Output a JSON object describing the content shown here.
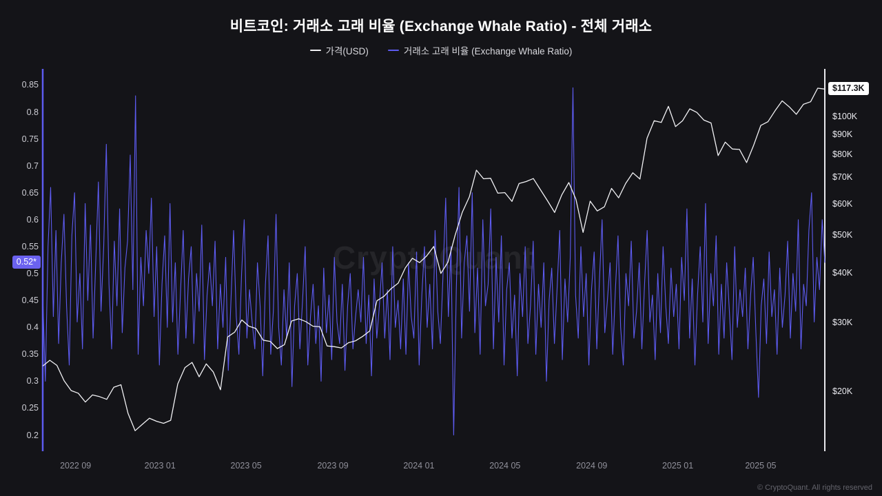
{
  "header": {
    "title": "비트코인: 거래소 고래 비율 (Exchange Whale Ratio) - 전체 거래소",
    "legend": [
      {
        "label": "가격(USD)",
        "color": "#f2f2f5"
      },
      {
        "label": "거래소 고래 비율 (Exchange Whale Ratio)",
        "color": "#5d5bf0"
      }
    ]
  },
  "watermark": "CryptoQuant",
  "footer": {
    "copyright": "© CryptoQuant. All rights reserved"
  },
  "badges": {
    "ratio_current": "0.52*",
    "ratio_value": 0.52,
    "price_current": "$117.3K",
    "price_value": 117.3
  },
  "chart_data": {
    "type": "line",
    "title": "비트코인: 거래소 고래 비율 (Exchange Whale Ratio) - 전체 거래소",
    "x_range": [
      "2022-07",
      "2025-07"
    ],
    "x_ticks": [
      {
        "label": "2022 09",
        "pos": 0.042
      },
      {
        "label": "2023 01",
        "pos": 0.15
      },
      {
        "label": "2023 05",
        "pos": 0.26
      },
      {
        "label": "2023 09",
        "pos": 0.371
      },
      {
        "label": "2024 01",
        "pos": 0.481
      },
      {
        "label": "2024 05",
        "pos": 0.591
      },
      {
        "label": "2024 09",
        "pos": 0.702
      },
      {
        "label": "2025 01",
        "pos": 0.812
      },
      {
        "label": "2025 05",
        "pos": 0.918
      }
    ],
    "left_axis": {
      "name": "Exchange Whale Ratio",
      "scale": "linear",
      "min": 0.17,
      "max": 0.88,
      "ticks": [
        {
          "label": "0.85",
          "value": 0.85
        },
        {
          "label": "0.8",
          "value": 0.8
        },
        {
          "label": "0.75",
          "value": 0.75
        },
        {
          "label": "0.7",
          "value": 0.7
        },
        {
          "label": "0.65",
          "value": 0.65
        },
        {
          "label": "0.6",
          "value": 0.6
        },
        {
          "label": "0.55",
          "value": 0.55
        },
        {
          "label": "0.5",
          "value": 0.5
        },
        {
          "label": "0.45",
          "value": 0.45
        },
        {
          "label": "0.4",
          "value": 0.4
        },
        {
          "label": "0.35",
          "value": 0.35
        },
        {
          "label": "0.3",
          "value": 0.3
        },
        {
          "label": "0.25",
          "value": 0.25
        },
        {
          "label": "0.2",
          "value": 0.2
        }
      ]
    },
    "right_axis": {
      "name": "가격(USD, 천 달러)",
      "scale": "log",
      "min": 14.1,
      "max": 132,
      "ticks": [
        {
          "label": "$100K",
          "value": 100
        },
        {
          "label": "$90K",
          "value": 90
        },
        {
          "label": "$80K",
          "value": 80
        },
        {
          "label": "$70K",
          "value": 70
        },
        {
          "label": "$60K",
          "value": 60
        },
        {
          "label": "$50K",
          "value": 50
        },
        {
          "label": "$40K",
          "value": 40
        },
        {
          "label": "$30K",
          "value": 30
        },
        {
          "label": "$20K",
          "value": 20
        }
      ]
    },
    "series": [
      {
        "name": "가격(USD)",
        "color": "#f2f2f5",
        "axis": "right",
        "unit": "K USD",
        "values": [
          23.2,
          24.0,
          23.3,
          21.3,
          20.1,
          19.8,
          18.8,
          19.6,
          19.4,
          19.1,
          20.5,
          20.8,
          17.6,
          15.9,
          16.5,
          17.1,
          16.8,
          16.6,
          16.9,
          20.9,
          23.0,
          23.7,
          21.8,
          23.5,
          22.4,
          20.2,
          27.5,
          28.3,
          30.4,
          29.3,
          28.9,
          27.0,
          26.8,
          25.7,
          26.3,
          30.2,
          30.6,
          30.1,
          29.3,
          29.2,
          26.1,
          26.0,
          25.8,
          26.6,
          26.9,
          27.6,
          28.5,
          34.0,
          34.9,
          36.5,
          37.7,
          41.2,
          43.6,
          42.5,
          44.2,
          46.7,
          39.9,
          42.6,
          49.9,
          57.0,
          62.4,
          73.0,
          69.4,
          69.6,
          63.8,
          64.0,
          60.8,
          67.5,
          68.3,
          69.5,
          65.1,
          61.0,
          57.0,
          63.1,
          67.9,
          61.5,
          50.7,
          60.9,
          57.5,
          58.9,
          65.6,
          62.1,
          67.6,
          71.9,
          69.3,
          88.0,
          97.5,
          96.5,
          106.0,
          94.2,
          97.5,
          104.5,
          102.3,
          97.8,
          96.2,
          79.5,
          86.0,
          82.6,
          82.4,
          76.3,
          84.5,
          94.8,
          96.9,
          103.3,
          109.5,
          105.7,
          101.2,
          107.3,
          108.9,
          117.9,
          117.3
        ]
      },
      {
        "name": "거래소 고래 비율 (Exchange Whale Ratio)",
        "color": "#5d5bf0",
        "axis": "left",
        "unit": "ratio",
        "values": [
          0.46,
          0.3,
          0.55,
          0.66,
          0.42,
          0.58,
          0.37,
          0.52,
          0.61,
          0.44,
          0.33,
          0.57,
          0.65,
          0.41,
          0.5,
          0.36,
          0.63,
          0.45,
          0.59,
          0.38,
          0.52,
          0.67,
          0.43,
          0.55,
          0.74,
          0.48,
          0.36,
          0.56,
          0.44,
          0.62,
          0.39,
          0.51,
          0.56,
          0.72,
          0.47,
          0.83,
          0.35,
          0.53,
          0.44,
          0.58,
          0.5,
          0.64,
          0.42,
          0.55,
          0.33,
          0.48,
          0.57,
          0.4,
          0.63,
          0.41,
          0.52,
          0.35,
          0.47,
          0.58,
          0.38,
          0.49,
          0.55,
          0.37,
          0.5,
          0.43,
          0.59,
          0.34,
          0.46,
          0.52,
          0.44,
          0.56,
          0.36,
          0.48,
          0.4,
          0.53,
          0.32,
          0.45,
          0.58,
          0.42,
          0.35,
          0.5,
          0.6,
          0.38,
          0.47,
          0.41,
          0.36,
          0.52,
          0.44,
          0.31,
          0.48,
          0.57,
          0.35,
          0.43,
          0.61,
          0.4,
          0.33,
          0.47,
          0.38,
          0.52,
          0.29,
          0.44,
          0.5,
          0.36,
          0.45,
          0.55,
          0.33,
          0.42,
          0.48,
          0.37,
          0.44,
          0.3,
          0.51,
          0.39,
          0.46,
          0.34,
          0.53,
          0.41,
          0.37,
          0.48,
          0.32,
          0.44,
          0.5,
          0.36,
          0.42,
          0.47,
          0.41,
          0.53,
          0.37,
          0.46,
          0.31,
          0.49,
          0.38,
          0.44,
          0.52,
          0.38,
          0.47,
          0.34,
          0.55,
          0.4,
          0.45,
          0.36,
          0.49,
          0.35,
          0.52,
          0.42,
          0.38,
          0.54,
          0.33,
          0.46,
          0.55,
          0.4,
          0.48,
          0.36,
          0.58,
          0.43,
          0.37,
          0.5,
          0.64,
          0.42,
          0.55,
          0.2,
          0.47,
          0.66,
          0.38,
          0.52,
          0.57,
          0.43,
          0.65,
          0.39,
          0.51,
          0.35,
          0.6,
          0.44,
          0.48,
          0.62,
          0.36,
          0.53,
          0.41,
          0.57,
          0.33,
          0.47,
          0.52,
          0.38,
          0.46,
          0.31,
          0.5,
          0.42,
          0.55,
          0.37,
          0.44,
          0.56,
          0.35,
          0.48,
          0.4,
          0.52,
          0.3,
          0.45,
          0.51,
          0.37,
          0.47,
          0.58,
          0.34,
          0.49,
          0.41,
          0.53,
          0.845,
          0.46,
          0.38,
          0.55,
          0.42,
          0.5,
          0.33,
          0.47,
          0.54,
          0.36,
          0.49,
          0.6,
          0.39,
          0.45,
          0.52,
          0.35,
          0.47,
          0.57,
          0.4,
          0.33,
          0.5,
          0.44,
          0.56,
          0.38,
          0.43,
          0.52,
          0.36,
          0.48,
          0.58,
          0.41,
          0.46,
          0.34,
          0.5,
          0.39,
          0.55,
          0.44,
          0.37,
          0.51,
          0.42,
          0.48,
          0.36,
          0.53,
          0.45,
          0.62,
          0.38,
          0.49,
          0.33,
          0.46,
          0.55,
          0.41,
          0.63,
          0.37,
          0.5,
          0.44,
          0.57,
          0.35,
          0.48,
          0.38,
          0.52,
          0.43,
          0.34,
          0.55,
          0.4,
          0.47,
          0.42,
          0.51,
          0.36,
          0.46,
          0.53,
          0.39,
          0.27,
          0.44,
          0.49,
          0.37,
          0.54,
          0.42,
          0.47,
          0.35,
          0.51,
          0.4,
          0.46,
          0.56,
          0.38,
          0.5,
          0.43,
          0.6,
          0.36,
          0.48,
          0.44,
          0.58,
          0.65,
          0.41,
          0.53,
          0.47,
          0.6,
          0.52
        ]
      }
    ]
  }
}
